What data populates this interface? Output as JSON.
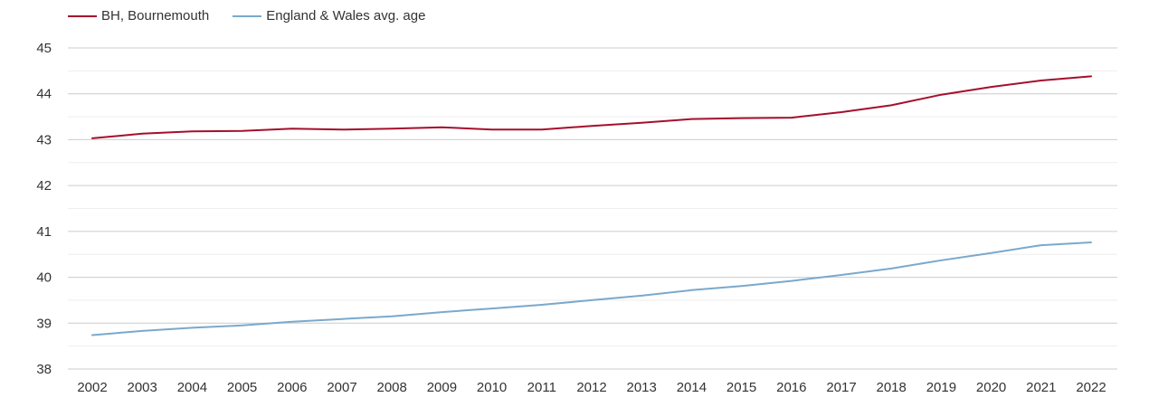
{
  "chart_data": {
    "type": "line",
    "title": "",
    "xlabel": "",
    "ylabel": "",
    "x": [
      "2002",
      "2003",
      "2004",
      "2005",
      "2006",
      "2007",
      "2008",
      "2009",
      "2010",
      "2011",
      "2012",
      "2013",
      "2014",
      "2015",
      "2016",
      "2017",
      "2018",
      "2019",
      "2020",
      "2021",
      "2022"
    ],
    "ylim": [
      38,
      45
    ],
    "yticks": [
      38,
      39,
      40,
      41,
      42,
      43,
      44,
      45
    ],
    "grid": true,
    "minor_grid": true,
    "legend_position": "top-left",
    "series": [
      {
        "name": "BH, Bournemouth",
        "color": "#a50f2d",
        "values": [
          43.03,
          43.13,
          43.18,
          43.19,
          43.24,
          43.22,
          43.24,
          43.27,
          43.22,
          43.22,
          43.3,
          43.37,
          43.45,
          43.47,
          43.48,
          43.6,
          43.75,
          43.98,
          44.15,
          44.29,
          44.38
        ]
      },
      {
        "name": "England & Wales avg. age",
        "color": "#7aa9cc",
        "values": [
          38.74,
          38.83,
          38.9,
          38.95,
          39.03,
          39.09,
          39.15,
          39.24,
          39.32,
          39.4,
          39.5,
          39.6,
          39.72,
          39.81,
          39.92,
          40.05,
          40.19,
          40.37,
          40.53,
          40.7,
          40.76
        ]
      }
    ]
  }
}
